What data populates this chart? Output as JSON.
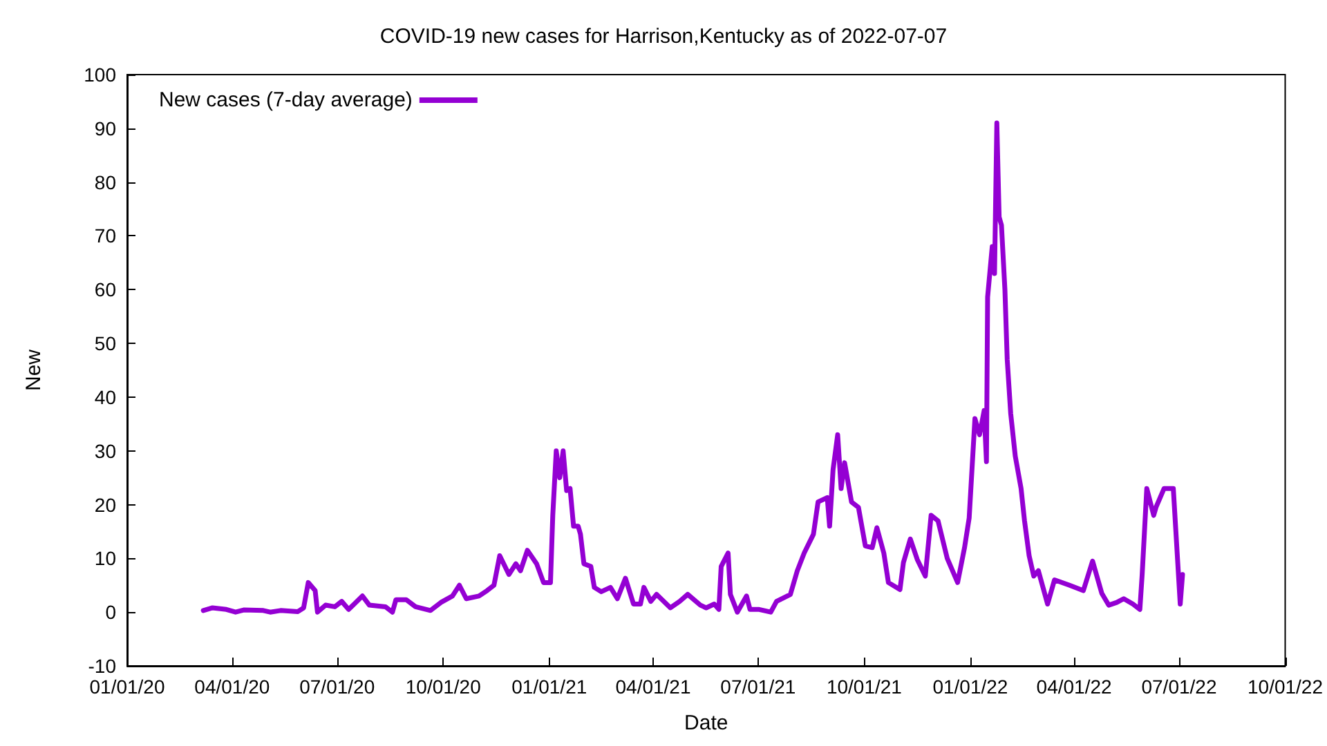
{
  "chart_data": {
    "type": "line",
    "title": "COVID-19 new cases for Harrison,Kentucky as of 2022-07-07",
    "xlabel": "Date",
    "ylabel": "New",
    "legend": "top left",
    "grid": false,
    "marker": "none",
    "line_style": "solid",
    "xlim": [
      "2020-01-01",
      "2022-10-01"
    ],
    "xticks": [
      {
        "value": "2020-01-01",
        "label": "01/01/20"
      },
      {
        "value": "2020-04-01",
        "label": "04/01/20"
      },
      {
        "value": "2020-07-01",
        "label": "07/01/20"
      },
      {
        "value": "2020-10-01",
        "label": "10/01/20"
      },
      {
        "value": "2021-01-01",
        "label": "01/01/21"
      },
      {
        "value": "2021-04-01",
        "label": "04/01/21"
      },
      {
        "value": "2021-07-01",
        "label": "07/01/21"
      },
      {
        "value": "2021-10-01",
        "label": "10/01/21"
      },
      {
        "value": "2022-01-01",
        "label": "01/01/22"
      },
      {
        "value": "2022-04-01",
        "label": "04/01/22"
      },
      {
        "value": "2022-07-01",
        "label": "07/01/22"
      },
      {
        "value": "2022-10-01",
        "label": "10/01/22"
      }
    ],
    "ylim": [
      -10,
      100
    ],
    "yticks": [
      -10,
      0,
      10,
      20,
      30,
      40,
      50,
      60,
      70,
      80,
      90,
      100
    ],
    "x": [
      "2020-03-07",
      "2020-03-15",
      "2020-03-27",
      "2020-04-04",
      "2020-04-11",
      "2020-04-28",
      "2020-05-04",
      "2020-05-13",
      "2020-05-28",
      "2020-06-02",
      "2020-06-06",
      "2020-06-12",
      "2020-06-14",
      "2020-06-21",
      "2020-06-29",
      "2020-07-05",
      "2020-07-11",
      "2020-07-23",
      "2020-07-29",
      "2020-08-12",
      "2020-08-18",
      "2020-08-21",
      "2020-08-30",
      "2020-09-07",
      "2020-09-20",
      "2020-09-29",
      "2020-10-09",
      "2020-10-15",
      "2020-10-21",
      "2020-11-01",
      "2020-11-08",
      "2020-11-14",
      "2020-11-19",
      "2020-11-27",
      "2020-12-03",
      "2020-12-07",
      "2020-12-13",
      "2020-12-21",
      "2020-12-27",
      "2021-01-02",
      "2021-01-04",
      "2021-01-07",
      "2021-01-10",
      "2021-01-13",
      "2021-01-16",
      "2021-01-19",
      "2021-01-22",
      "2021-01-26",
      "2021-01-28",
      "2021-01-31",
      "2021-02-06",
      "2021-02-09",
      "2021-02-15",
      "2021-02-23",
      "2021-03-01",
      "2021-03-08",
      "2021-03-15",
      "2021-03-21",
      "2021-03-24",
      "2021-03-30",
      "2021-04-04",
      "2021-04-16",
      "2021-04-24",
      "2021-05-01",
      "2021-05-12",
      "2021-05-17",
      "2021-05-24",
      "2021-05-28",
      "2021-05-30",
      "2021-06-05",
      "2021-06-07",
      "2021-06-13",
      "2021-06-21",
      "2021-06-24",
      "2021-07-02",
      "2021-07-12",
      "2021-07-17",
      "2021-07-29",
      "2021-08-04",
      "2021-08-10",
      "2021-08-18",
      "2021-08-22",
      "2021-08-30",
      "2021-09-01",
      "2021-09-04",
      "2021-09-08",
      "2021-09-11",
      "2021-09-14",
      "2021-09-20",
      "2021-09-26",
      "2021-10-02",
      "2021-10-08",
      "2021-10-12",
      "2021-10-18",
      "2021-10-22",
      "2021-11-01",
      "2021-11-04",
      "2021-11-10",
      "2021-11-16",
      "2021-11-23",
      "2021-11-28",
      "2021-12-04",
      "2021-12-12",
      "2021-12-21",
      "2021-12-27",
      "2021-12-31",
      "2022-01-05",
      "2022-01-09",
      "2022-01-13",
      "2022-01-15",
      "2022-01-16",
      "2022-01-20",
      "2022-01-22",
      "2022-01-24",
      "2022-01-26",
      "2022-01-28",
      "2022-01-31",
      "2022-02-02",
      "2022-02-05",
      "2022-02-09",
      "2022-02-14",
      "2022-02-17",
      "2022-02-21",
      "2022-02-25",
      "2022-03-01",
      "2022-03-09",
      "2022-03-15",
      "2022-03-28",
      "2022-04-09",
      "2022-04-17",
      "2022-04-25",
      "2022-05-01",
      "2022-05-08",
      "2022-05-14",
      "2022-05-22",
      "2022-05-28",
      "2022-05-30",
      "2022-06-03",
      "2022-06-09",
      "2022-06-11",
      "2022-06-18",
      "2022-06-26",
      "2022-07-02",
      "2022-07-04"
    ],
    "series": [
      {
        "name": "New cases (7-day average)",
        "color": "#9400d3",
        "values": [
          0.3,
          0.8,
          0.5,
          0,
          0.4,
          0.3,
          0,
          0.3,
          0.1,
          0.8,
          5.5,
          4,
          0,
          1.3,
          1,
          2,
          0.5,
          3,
          1.3,
          1,
          0,
          2.3,
          2.3,
          1,
          0.3,
          1.8,
          3,
          5,
          2.5,
          3,
          4,
          5,
          10.5,
          7,
          9,
          7.7,
          11.5,
          9,
          5.5,
          5.5,
          18,
          30,
          25,
          30,
          22.6,
          23,
          16,
          16,
          14.5,
          9,
          8.5,
          4.6,
          3.8,
          4.6,
          2.5,
          6.3,
          1.5,
          1.5,
          4.6,
          2,
          3.3,
          0.8,
          2,
          3.3,
          1.3,
          0.8,
          1.5,
          0.5,
          8.5,
          11,
          3.3,
          0,
          3,
          0.5,
          0.5,
          0,
          2,
          3.3,
          7.7,
          11,
          14.5,
          20.5,
          21.3,
          16,
          26.5,
          33,
          23,
          27.8,
          20.5,
          19.5,
          12.3,
          12,
          15.7,
          11,
          5.5,
          4.2,
          9.2,
          13.6,
          9.8,
          6.7,
          18,
          17,
          10,
          5.5,
          12,
          17.5,
          36,
          33,
          37.5,
          28,
          58.6,
          68,
          63,
          91,
          73.5,
          72,
          60,
          47,
          37,
          29,
          23,
          17,
          10.5,
          6.7,
          7.7,
          1.5,
          6,
          5,
          4,
          9.5,
          3.5,
          1.3,
          1.8,
          2.5,
          1.5,
          0.5,
          7,
          23,
          18,
          19.5,
          23,
          23,
          1.5,
          7
        ]
      }
    ]
  }
}
